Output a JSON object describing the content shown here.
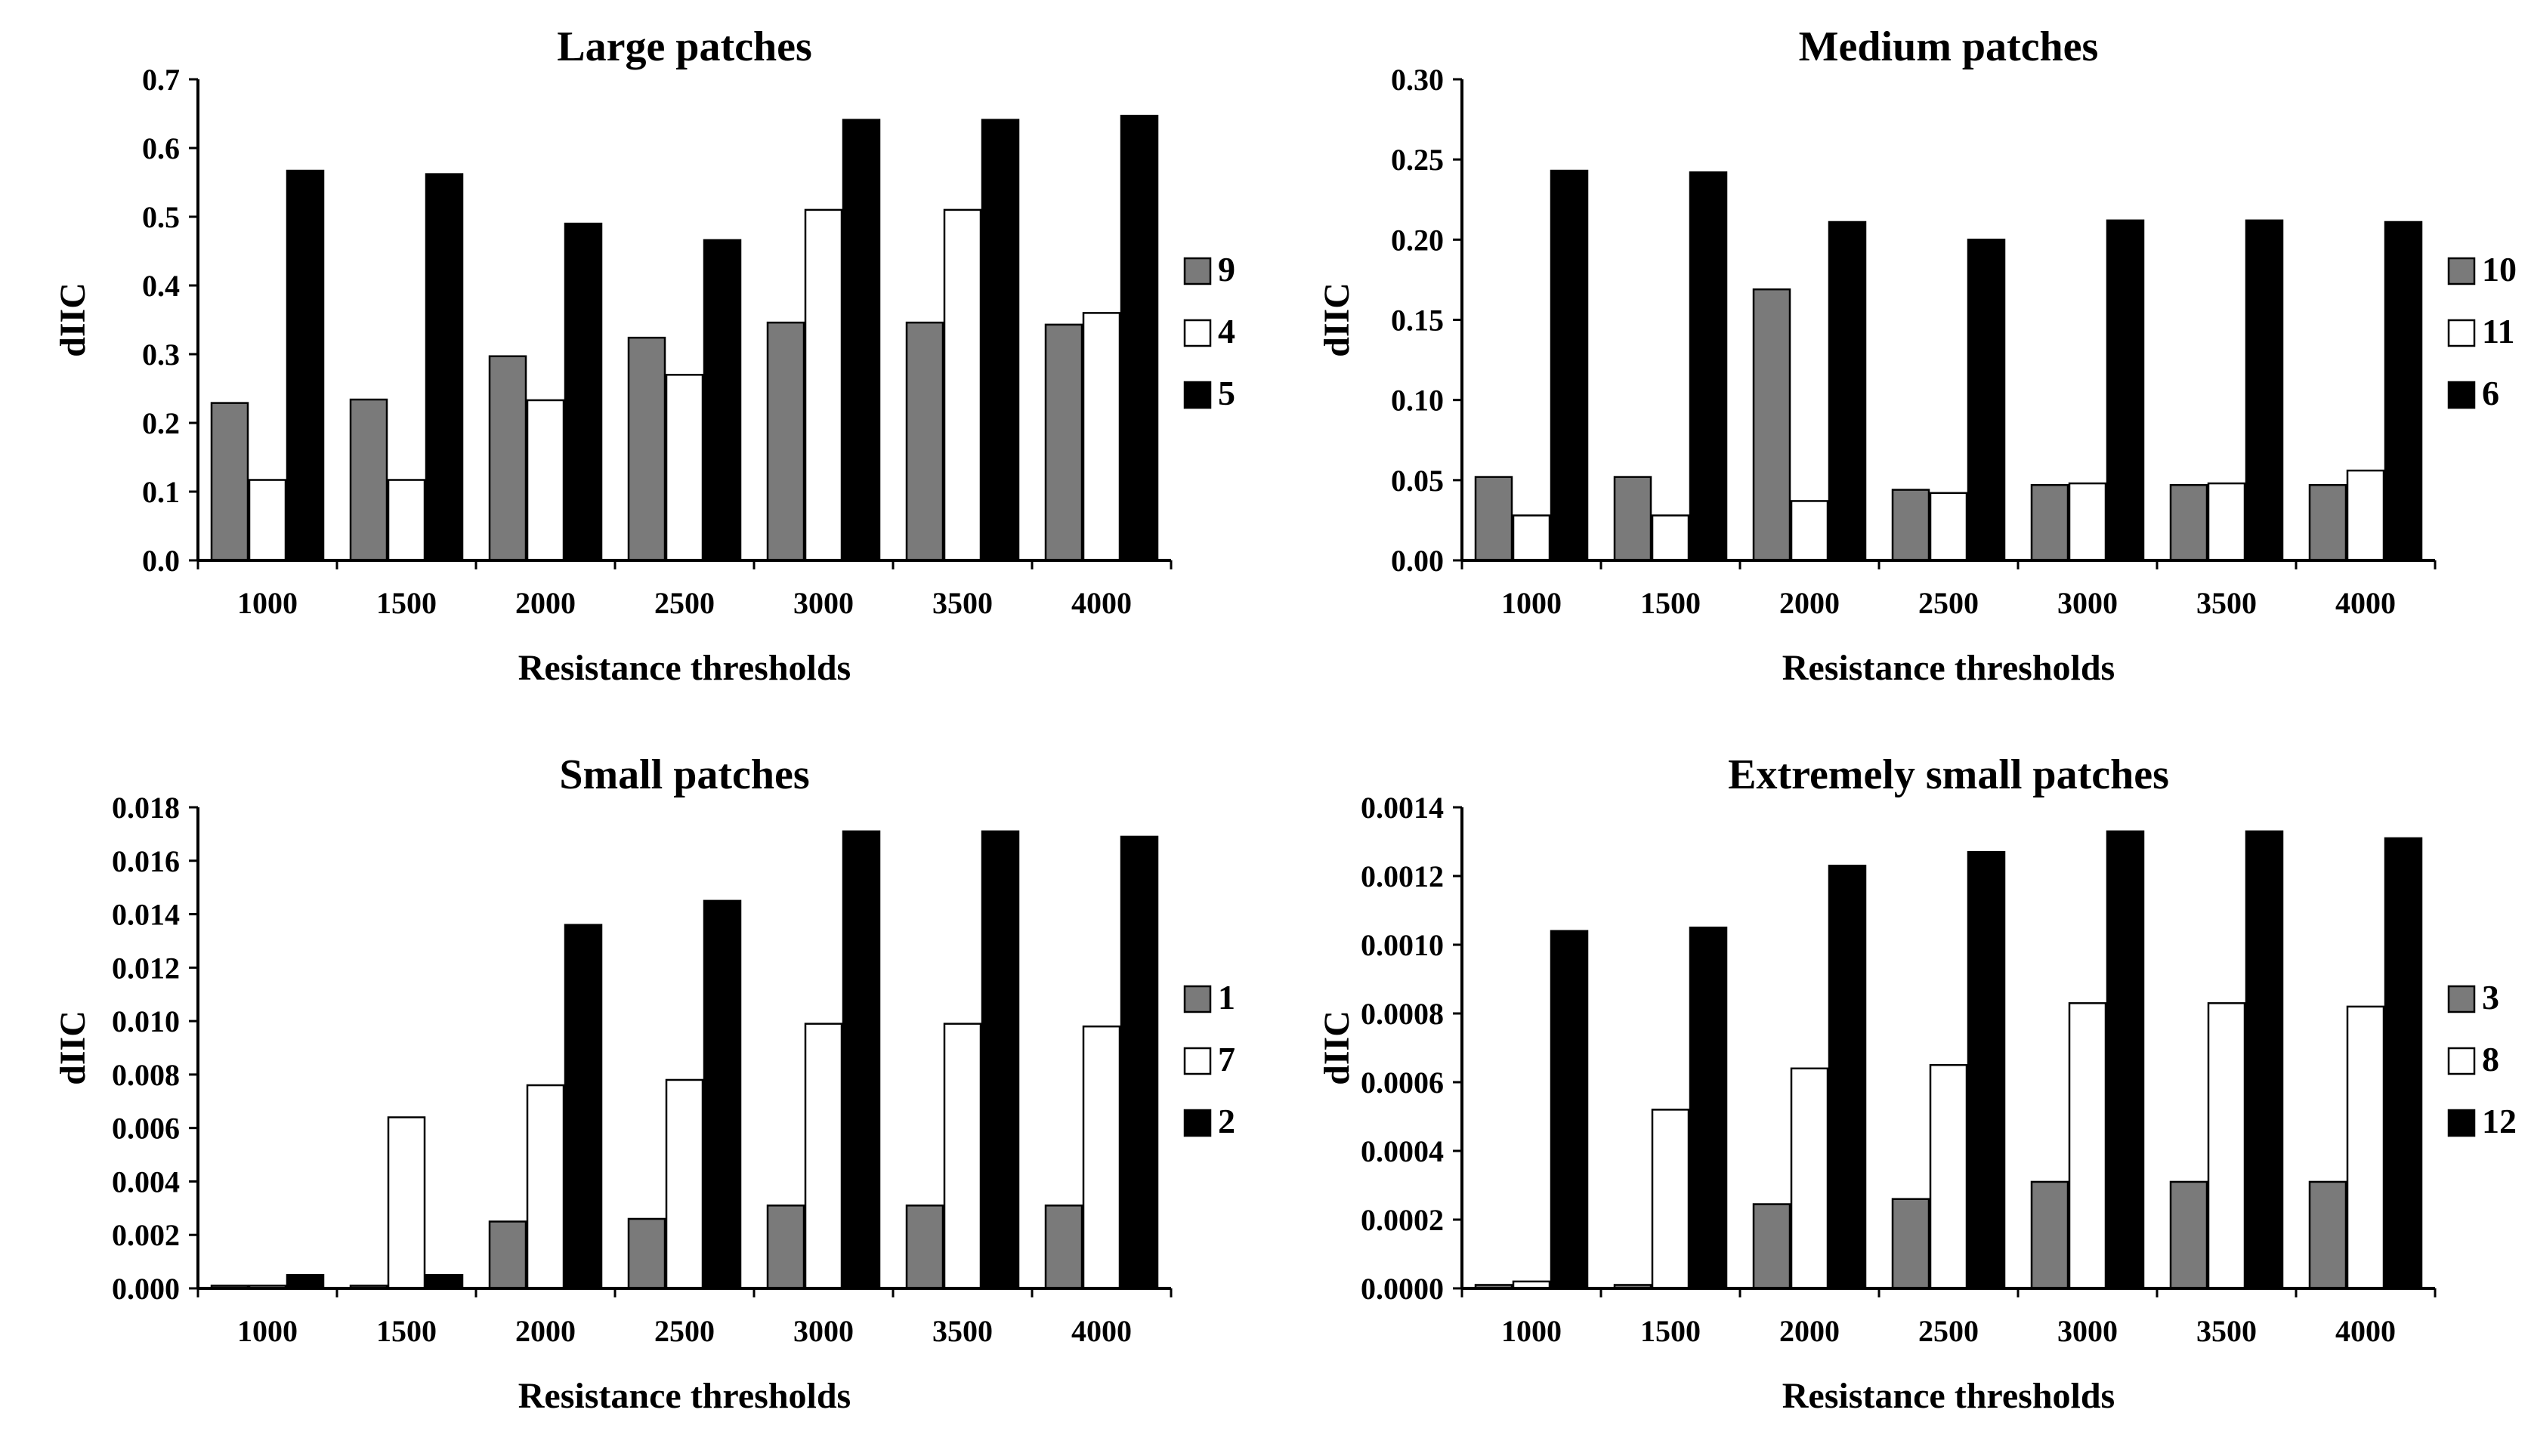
{
  "figure": {
    "colors": {
      "series_1": "#7a7a7a",
      "series_2": "#ffffff",
      "series_3": "#000000"
    }
  },
  "chart_data": [
    {
      "type": "bar",
      "title": "Large patches",
      "xlabel": "Resistance thresholds",
      "ylabel": "dIIC",
      "categories": [
        "1000",
        "1500",
        "2000",
        "2500",
        "3000",
        "3500",
        "4000"
      ],
      "ylim": [
        0,
        0.7
      ],
      "yticks": [
        "0.0",
        "0.1",
        "0.2",
        "0.3",
        "0.4",
        "0.5",
        "0.6",
        "0.7"
      ],
      "legend_position": "right",
      "series": [
        {
          "name": "9",
          "values": [
            0.229,
            0.234,
            0.297,
            0.324,
            0.346,
            0.346,
            0.343
          ]
        },
        {
          "name": "4",
          "values": [
            0.117,
            0.117,
            0.233,
            0.27,
            0.51,
            0.51,
            0.36
          ]
        },
        {
          "name": "5",
          "values": [
            0.567,
            0.562,
            0.49,
            0.466,
            0.641,
            0.641,
            0.647
          ]
        }
      ]
    },
    {
      "type": "bar",
      "title": "Medium patches",
      "xlabel": "Resistance thresholds",
      "ylabel": "dIIC",
      "categories": [
        "1000",
        "1500",
        "2000",
        "2500",
        "3000",
        "3500",
        "4000"
      ],
      "ylim": [
        0,
        0.3
      ],
      "yticks": [
        "0.00",
        "0.05",
        "0.10",
        "0.15",
        "0.20",
        "0.25",
        "0.30"
      ],
      "legend_position": "right",
      "series": [
        {
          "name": "10",
          "values": [
            0.052,
            0.052,
            0.169,
            0.044,
            0.047,
            0.047,
            0.047
          ]
        },
        {
          "name": "11",
          "values": [
            0.028,
            0.028,
            0.037,
            0.042,
            0.048,
            0.048,
            0.056
          ]
        },
        {
          "name": "6",
          "values": [
            0.243,
            0.242,
            0.211,
            0.2,
            0.212,
            0.212,
            0.211
          ]
        }
      ]
    },
    {
      "type": "bar",
      "title": "Small patches",
      "xlabel": "Resistance thresholds",
      "ylabel": "dIIC",
      "categories": [
        "1000",
        "1500",
        "2000",
        "2500",
        "3000",
        "3500",
        "4000"
      ],
      "ylim": [
        0,
        0.018
      ],
      "yticks": [
        "0.000",
        "0.002",
        "0.004",
        "0.006",
        "0.008",
        "0.010",
        "0.012",
        "0.014",
        "0.016",
        "0.018"
      ],
      "legend_position": "right",
      "series": [
        {
          "name": "1",
          "values": [
            0.0001,
            0.0001,
            0.0025,
            0.0026,
            0.0031,
            0.0031,
            0.0031
          ]
        },
        {
          "name": "7",
          "values": [
            0.0001,
            0.0064,
            0.0076,
            0.0078,
            0.0099,
            0.0099,
            0.0098
          ]
        },
        {
          "name": "2",
          "values": [
            0.0005,
            0.0005,
            0.0136,
            0.0145,
            0.0171,
            0.0171,
            0.0169
          ]
        }
      ]
    },
    {
      "type": "bar",
      "title": "Extremely small patches",
      "xlabel": "Resistance thresholds",
      "ylabel": "dIIC",
      "categories": [
        "1000",
        "1500",
        "2000",
        "2500",
        "3000",
        "3500",
        "4000"
      ],
      "ylim": [
        0,
        0.0014
      ],
      "yticks": [
        "0.0000",
        "0.0002",
        "0.0004",
        "0.0006",
        "0.0008",
        "0.0010",
        "0.0012",
        "0.0014"
      ],
      "legend_position": "right",
      "series": [
        {
          "name": "3",
          "values": [
            1e-05,
            1e-05,
            0.000245,
            0.00026,
            0.00031,
            0.00031,
            0.00031
          ]
        },
        {
          "name": "8",
          "values": [
            2e-05,
            0.00052,
            0.00064,
            0.00065,
            0.00083,
            0.00083,
            0.00082
          ]
        },
        {
          "name": "12",
          "values": [
            0.00104,
            0.00105,
            0.00123,
            0.00127,
            0.00133,
            0.00133,
            0.00131
          ]
        }
      ]
    }
  ]
}
